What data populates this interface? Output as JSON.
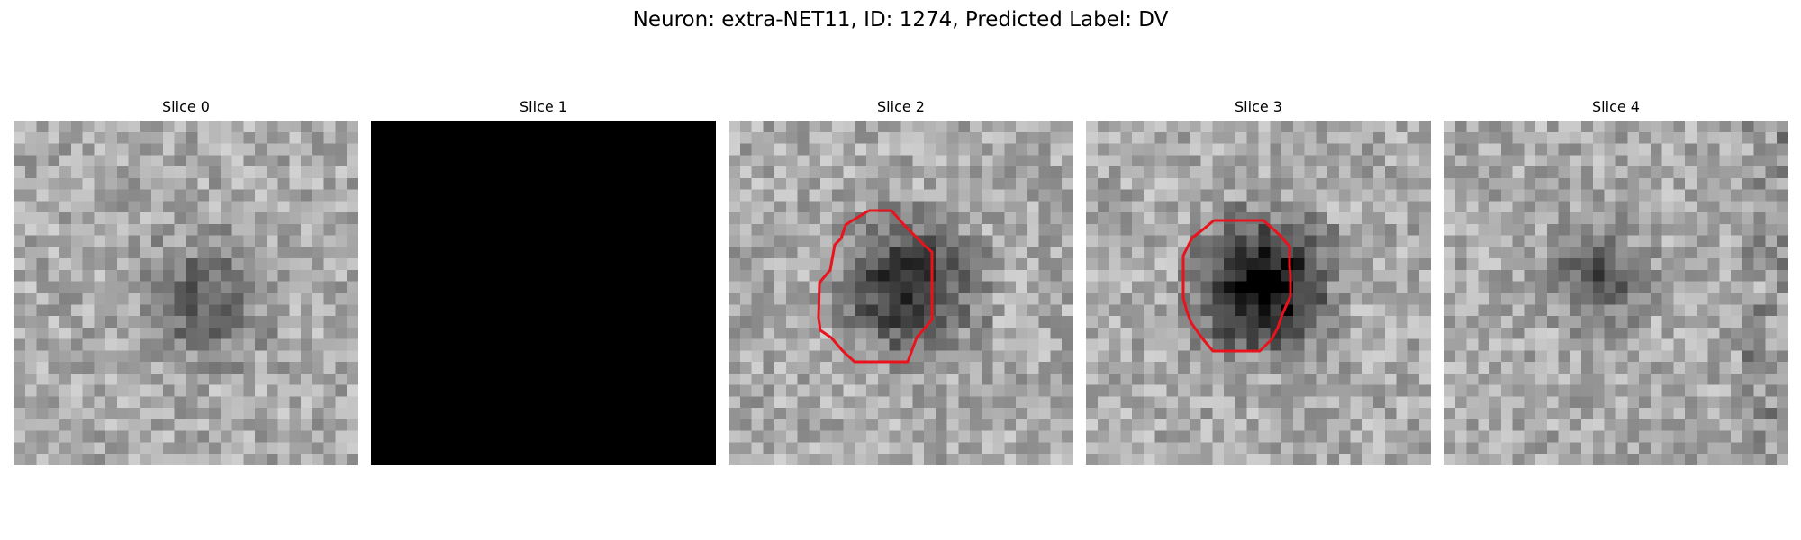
{
  "figure": {
    "suptitle": "Neuron: extra-NET11, ID: 1274, Predicted Label: DV",
    "contour_color": "#e8131c"
  },
  "panels": [
    {
      "title": "Slice 0",
      "pattern": "blob-faint",
      "contour": false
    },
    {
      "title": "Slice 1",
      "pattern": "black",
      "contour": false
    },
    {
      "title": "Slice 2",
      "pattern": "blob-dark",
      "contour": true
    },
    {
      "title": "Slice 3",
      "pattern": "blob-darkest",
      "contour": true
    },
    {
      "title": "Slice 4",
      "pattern": "blob-faint-2",
      "contour": false
    }
  ]
}
